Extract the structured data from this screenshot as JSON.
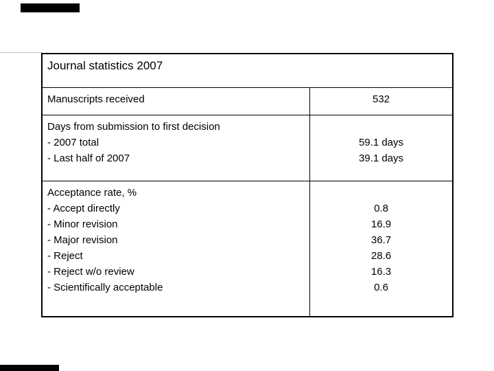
{
  "colors": {
    "border": "#000000",
    "text": "#000000",
    "page_line": "#bdbdbd",
    "bar": "#000000"
  },
  "table": {
    "title": "Journal statistics 2007",
    "rows": [
      {
        "left_lines": [
          "Manuscripts received"
        ],
        "right_lines": [
          "532"
        ]
      },
      {
        "left_lines": [
          "Days from submission to first decision",
          "- 2007 total",
          "- Last half of 2007"
        ],
        "right_lines": [
          "",
          "59.1 days",
          "39.1 days"
        ]
      },
      {
        "left_lines": [
          "Acceptance rate, %",
          "- Accept directly",
          "- Minor revision",
          "- Major revision",
          "- Reject",
          "- Reject w/o review",
          "- Scientifically acceptable"
        ],
        "right_lines": [
          "",
          "0.8",
          "16.9",
          "36.7",
          "28.6",
          "16.3",
          "0.6"
        ]
      }
    ]
  }
}
